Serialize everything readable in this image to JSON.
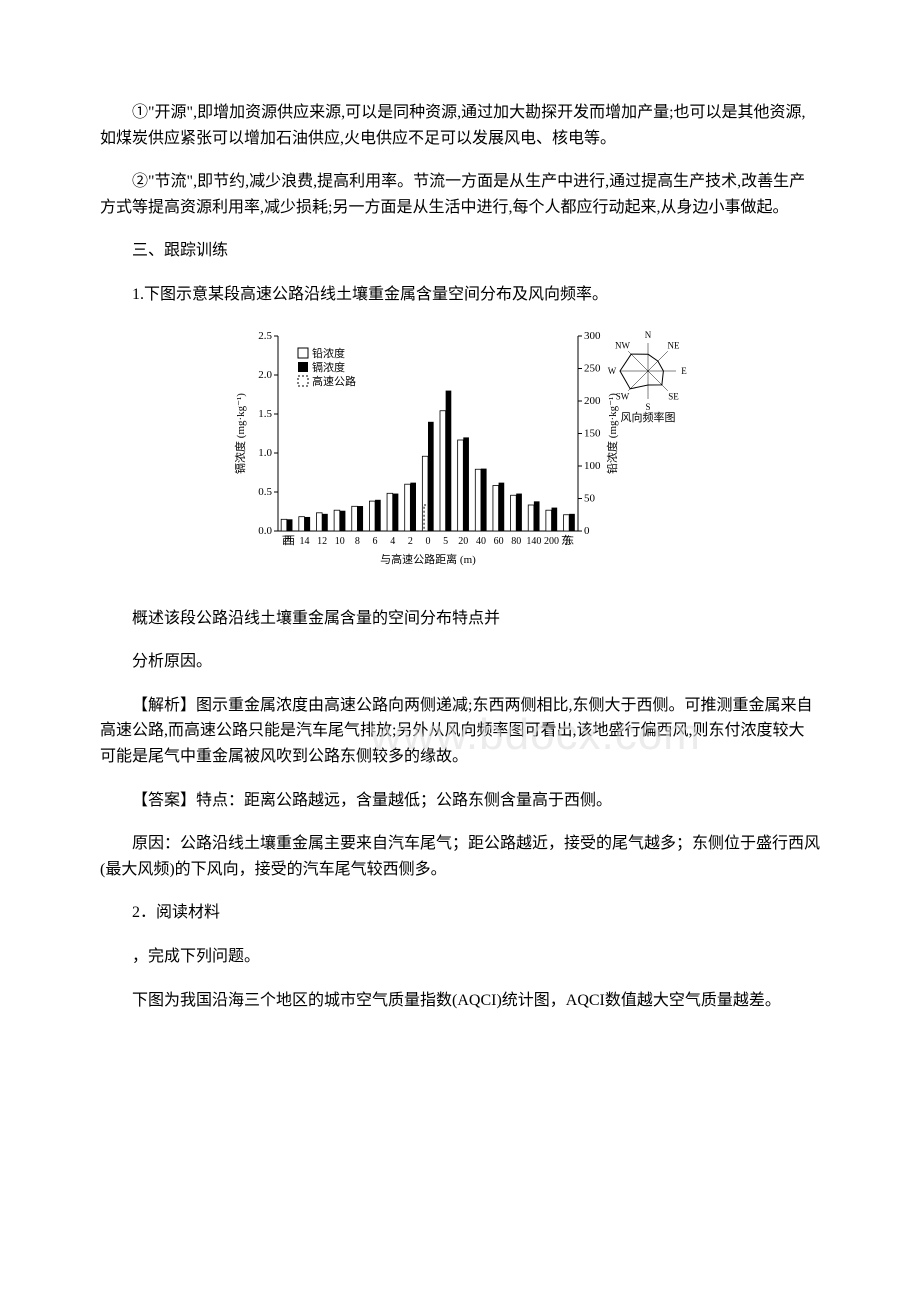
{
  "para1": "①\"开源\",即增加资源供应来源,可以是同种资源,通过加大勘探开发而增加产量;也可以是其他资源,如煤炭供应紧张可以增加石油供应,火电供应不足可以发展风电、核电等。",
  "para2": "②\"节流\",即节约,减少浪费,提高利用率。节流一方面是从生产中进行,通过提高生产技术,改善生产方式等提高资源利用率,减少损耗;另一方面是从生活中进行,每个人都应行动起来,从身边小事做起。",
  "heading3": "三、跟踪训练",
  "q1_stem": "1.下图示意某段高速公路沿线土壤重金属含量空间分布及风向频率。",
  "q1_task_a": "概述该段公路沿线土壤重金属含量的空间分布特点并",
  "q1_task_b": "分析原因。",
  "q1_analysis": "【解析】图示重金属浓度由高速公路向两侧递减;东西两侧相比,东侧大于西侧。可推测重金属来自高速公路,而高速公路只能是汽车尾气排放;另外从风向频率图可看出,该地盛行偏西风,则东付浓度较大可能是尾气中重金属被风吹到公路东侧较多的缘故。",
  "q1_answer1": "【答案】特点：距离公路越远，含量越低；公路东侧含量高于西侧。",
  "q1_answer2": "原因：公路沿线土壤重金属主要来自汽车尾气；距公路越近，接受的尾气越多；东侧位于盛行西风(最大风频)的下风向，接受的汽车尾气较西侧多。",
  "q2_stem_a": "2．阅读材料",
  "q2_stem_b": "，完成下列问题。",
  "q2_stem_c": "下图为我国沿海三个地区的城市空气质量指数(AQCI)统计图，AQCI数值越大空气质量越差。",
  "watermark_text": "www.bdocx.com",
  "chart": {
    "type": "bar",
    "y_left": {
      "label": "镉浓度 (mg·kg⁻¹)",
      "min": 0,
      "max": 2.5,
      "step": 0.5
    },
    "y_right": {
      "label": "铅浓度 (mg·kg⁻¹)",
      "min": 0,
      "max": 300,
      "step": 50
    },
    "x_label": "与高速公路距离 (m)",
    "x_ticks_west": [
      "西",
      "14",
      "12",
      "10",
      "8",
      "6",
      "4",
      "2",
      "0"
    ],
    "x_ticks_east": [
      "5",
      "20",
      "40",
      "60",
      "80",
      "140",
      "200",
      "东"
    ],
    "legend": {
      "lead": "铅浓度",
      "cadmium": "镉浓度",
      "highway": "高速公路"
    },
    "west_lead": [
      18,
      22,
      28,
      32,
      38,
      46,
      58,
      72,
      115
    ],
    "west_cd": [
      0.15,
      0.18,
      0.22,
      0.26,
      0.32,
      0.4,
      0.48,
      0.62,
      1.4
    ],
    "east_lead": [
      185,
      140,
      95,
      70,
      55,
      40,
      32,
      25
    ],
    "east_cd": [
      1.8,
      1.2,
      0.8,
      0.62,
      0.48,
      0.38,
      0.3,
      0.22
    ],
    "colors": {
      "bar_cd": "#000000",
      "bar_lead": "#ffffff",
      "bar_stroke": "#000000",
      "axis": "#000000",
      "text": "#000000"
    },
    "wind_rose": {
      "dirs": [
        "N",
        "NE",
        "E",
        "SE",
        "S",
        "SW",
        "W",
        "NW"
      ],
      "caption": "风向频率图"
    },
    "font_size": 11
  }
}
